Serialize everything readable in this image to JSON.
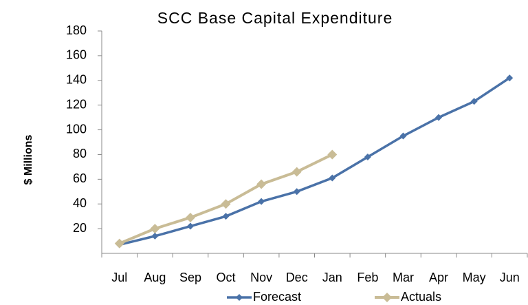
{
  "chart_data": {
    "type": "line",
    "title": "SCC Base Capital Expenditure",
    "y_label": "$ Millions",
    "categories": [
      "Jul",
      "Aug",
      "Sep",
      "Oct",
      "Nov",
      "Dec",
      "Jan",
      "Feb",
      "Mar",
      "Apr",
      "May",
      "Jun"
    ],
    "series": [
      {
        "name": "Forecast",
        "color": "#4a72a8",
        "values": [
          7,
          14,
          22,
          30,
          42,
          50,
          61,
          78,
          95,
          110,
          123,
          142
        ]
      },
      {
        "name": "Actuals",
        "color": "#c9bc96",
        "values": [
          8,
          20,
          29,
          40,
          56,
          66,
          80,
          null,
          null,
          null,
          null,
          null
        ]
      }
    ],
    "ylim": [
      0,
      180
    ],
    "yticks": [
      20,
      40,
      60,
      80,
      100,
      120,
      140,
      160,
      180
    ],
    "legend": "bottom"
  }
}
